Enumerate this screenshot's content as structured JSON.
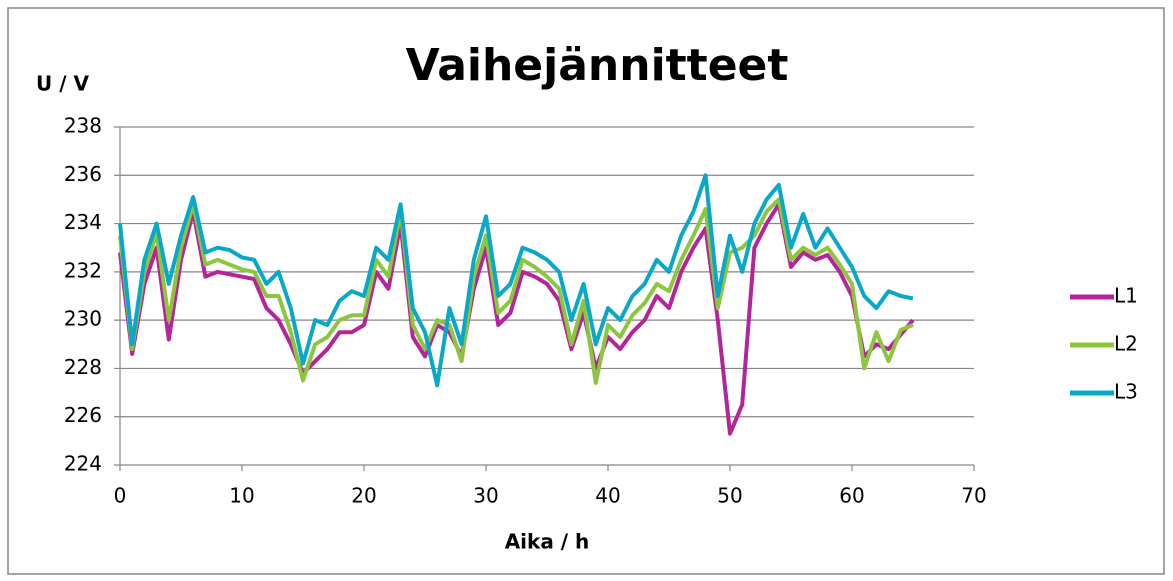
{
  "chart_data": {
    "type": "line",
    "title": "Vaihejännitteet",
    "x_label": "Aika / h",
    "y_label": "U / V",
    "x": [
      0,
      1,
      2,
      3,
      4,
      5,
      6,
      7,
      8,
      9,
      10,
      11,
      12,
      13,
      14,
      15,
      16,
      17,
      18,
      19,
      20,
      21,
      22,
      23,
      24,
      25,
      26,
      27,
      28,
      29,
      30,
      31,
      32,
      33,
      34,
      35,
      36,
      37,
      38,
      39,
      40,
      41,
      42,
      43,
      44,
      45,
      46,
      47,
      48,
      49,
      50,
      51,
      52,
      53,
      54,
      55,
      56,
      57,
      58,
      59,
      60,
      61,
      62,
      63,
      64,
      65
    ],
    "series": [
      {
        "name": "L1",
        "color": "#b5249a",
        "values": [
          232.8,
          228.6,
          231.5,
          233.0,
          229.2,
          232.5,
          234.5,
          231.8,
          232.0,
          231.9,
          231.8,
          231.7,
          230.5,
          230.0,
          229.0,
          227.8,
          228.3,
          228.8,
          229.5,
          229.5,
          229.8,
          232.0,
          231.3,
          234.0,
          229.3,
          228.5,
          229.8,
          229.5,
          228.5,
          231.3,
          233.0,
          229.8,
          230.3,
          232.0,
          231.8,
          231.5,
          230.8,
          228.8,
          230.3,
          228.0,
          229.3,
          228.8,
          229.5,
          230.0,
          231.0,
          230.5,
          232.0,
          233.0,
          233.8,
          230.0,
          225.3,
          226.5,
          233.0,
          234.0,
          234.8,
          232.2,
          232.8,
          232.5,
          232.7,
          232.0,
          231.0,
          228.5,
          229.0,
          228.8,
          229.4,
          230.0
        ]
      },
      {
        "name": "L2",
        "color": "#8cc63f",
        "values": [
          233.5,
          228.8,
          232.0,
          233.6,
          230.0,
          233.0,
          234.8,
          232.3,
          232.5,
          232.3,
          232.1,
          232.0,
          231.0,
          231.0,
          229.5,
          227.5,
          229.0,
          229.3,
          230.0,
          230.2,
          230.2,
          232.5,
          231.8,
          234.5,
          229.8,
          228.8,
          230.0,
          229.8,
          228.3,
          231.8,
          233.5,
          230.3,
          230.8,
          232.5,
          232.2,
          231.8,
          231.3,
          229.0,
          230.8,
          227.4,
          229.8,
          229.3,
          230.2,
          230.7,
          231.5,
          231.2,
          232.5,
          233.5,
          234.6,
          230.5,
          232.8,
          233.0,
          233.5,
          234.5,
          235.0,
          232.5,
          233.0,
          232.7,
          233.0,
          232.3,
          231.5,
          228.0,
          229.5,
          228.3,
          229.6,
          229.8
        ]
      },
      {
        "name": "L3",
        "color": "#0aa8c8",
        "values": [
          234.0,
          229.0,
          232.5,
          234.0,
          231.5,
          233.5,
          235.1,
          232.8,
          233.0,
          232.9,
          232.6,
          232.5,
          231.5,
          232.0,
          230.5,
          228.2,
          230.0,
          229.8,
          230.8,
          231.2,
          231.0,
          233.0,
          232.5,
          234.8,
          230.5,
          229.5,
          227.3,
          230.5,
          229.0,
          232.5,
          234.3,
          231.0,
          231.5,
          233.0,
          232.8,
          232.5,
          232.0,
          230.0,
          231.5,
          229.0,
          230.5,
          230.0,
          231.0,
          231.5,
          232.5,
          232.0,
          233.5,
          234.5,
          236.0,
          231.0,
          233.5,
          232.0,
          234.0,
          235.0,
          235.6,
          233.0,
          234.4,
          233.0,
          233.8,
          233.0,
          232.2,
          231.0,
          230.5,
          231.2,
          231.0,
          230.9
        ]
      }
    ],
    "xlim": [
      0,
      70
    ],
    "xticks": [
      0,
      10,
      20,
      30,
      40,
      50,
      60,
      70
    ],
    "ylim": [
      224,
      238
    ],
    "yticks": [
      224,
      226,
      228,
      230,
      232,
      234,
      236,
      238
    ],
    "grid": true,
    "legend": "right"
  }
}
